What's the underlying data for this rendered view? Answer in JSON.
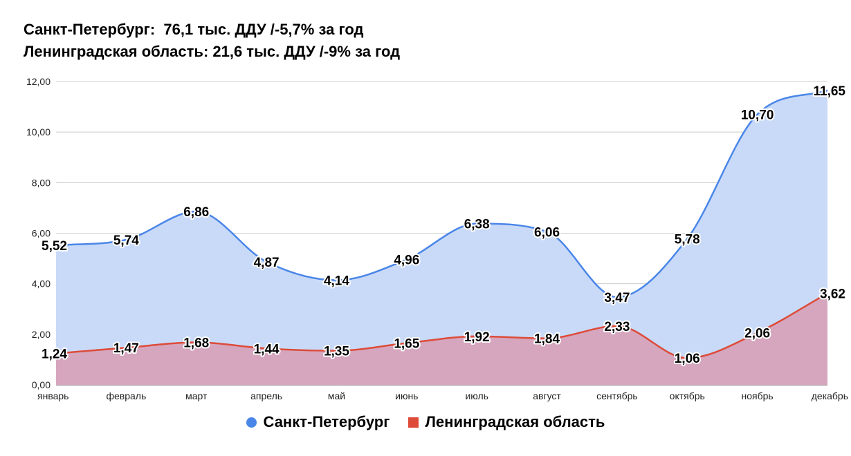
{
  "title_line1": "Санкт-Петербург:  76,1 тыс. ДДУ /-5,7% за год",
  "title_line2": "Ленинградская область: 21,6 тыс. ДДУ /-9% за год",
  "colors": {
    "spb_line": "#4a86e8",
    "spb_fill": "#c9daf8",
    "lo_line": "#dd4b39",
    "lo_fill": "#d5a6bd",
    "grid": "#cccccc",
    "axis": "#333333"
  },
  "legend": {
    "spb": "Санкт-Петербург",
    "lo": "Ленинградская область"
  },
  "chart_data": {
    "type": "area",
    "categories": [
      "январь",
      "февраль",
      "март",
      "апрель",
      "май",
      "июнь",
      "июль",
      "август",
      "сентябрь",
      "октябрь",
      "ноябрь",
      "декабрь"
    ],
    "series": [
      {
        "name": "Санкт-Петербург",
        "values": [
          5.52,
          5.74,
          6.86,
          4.87,
          4.14,
          4.96,
          6.38,
          6.06,
          3.47,
          5.78,
          10.7,
          11.65
        ],
        "labels": [
          "5,52",
          "5,74",
          "6,86",
          "4,87",
          "4,14",
          "4,96",
          "6,38",
          "6,06",
          "3,47",
          "5,78",
          "10,70",
          "11,65"
        ]
      },
      {
        "name": "Ленинградская область",
        "values": [
          1.24,
          1.47,
          1.68,
          1.44,
          1.35,
          1.65,
          1.92,
          1.84,
          2.33,
          1.06,
          2.06,
          3.62
        ],
        "labels": [
          "1,24",
          "1,47",
          "1,68",
          "1,44",
          "1,35",
          "1,65",
          "1,92",
          "1,84",
          "2,33",
          "1,06",
          "2,06",
          "3,62"
        ]
      }
    ],
    "ylim": [
      0,
      12
    ],
    "yticks": [
      0,
      2,
      4,
      6,
      8,
      10,
      12
    ],
    "ytick_labels": [
      "0,00",
      "2,00",
      "4,00",
      "6,00",
      "8,00",
      "10,00",
      "12,00"
    ],
    "grid": true,
    "legend_position": "bottom",
    "smooth": true
  }
}
